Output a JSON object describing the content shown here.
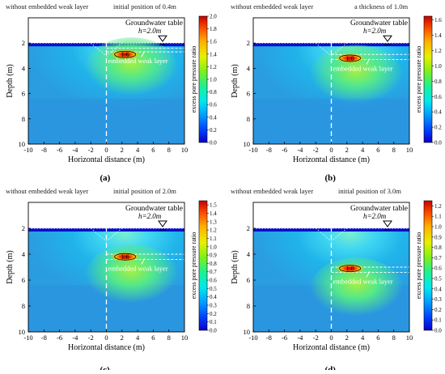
{
  "colorbar_label": "excess pore pressure ratio",
  "chart_data": [
    {
      "type": "heatmap",
      "panel_label": "(a)",
      "left_title": "without embedded weak layer",
      "right_title": "initial position of 0.4m",
      "xlabel": "Horizontal distance (m)",
      "ylabel": "Depth (m)",
      "xlim": [
        -10,
        10
      ],
      "ylim": [
        0,
        10
      ],
      "x_ticks": [
        -10,
        -8,
        -6,
        -4,
        -2,
        0,
        2,
        4,
        6,
        8,
        10
      ],
      "y_ticks": [
        2,
        4,
        6,
        8,
        10
      ],
      "y_inverted": true,
      "groundwater_label": "Groundwater table",
      "h_label": "h=2.0m",
      "groundwater_depth": 2.0,
      "weak_layer_label": "embedded weak layer",
      "weak_layer_depth": [
        2.4,
        2.7
      ],
      "peak_label": "1.6",
      "peak_x": 2.4,
      "peak_depth": 2.9,
      "colorbar_ticks": [
        0.0,
        0.2,
        0.4,
        0.6,
        0.8,
        1.0,
        1.2,
        1.4,
        1.6,
        1.8,
        2.0
      ],
      "colorbar_max": 2.0
    },
    {
      "type": "heatmap",
      "panel_label": "(b)",
      "left_title": "without embedded weak layer",
      "right_title": "a thickness of 1.0m",
      "xlabel": "Horizontal distance (m)",
      "ylabel": "Depth (m)",
      "xlim": [
        -10,
        10
      ],
      "ylim": [
        0,
        10
      ],
      "x_ticks": [
        -10,
        -8,
        -6,
        -4,
        -2,
        0,
        2,
        4,
        6,
        8,
        10
      ],
      "y_ticks": [
        2,
        4,
        6,
        8,
        10
      ],
      "y_inverted": true,
      "groundwater_label": "Groundwater table",
      "h_label": "h=2.0m",
      "groundwater_depth": 2.0,
      "weak_layer_label": "embedded weak layer",
      "weak_layer_depth": [
        2.9,
        3.3
      ],
      "peak_label": "1.0",
      "peak_x": 2.4,
      "peak_depth": 3.2,
      "colorbar_ticks": [
        0.0,
        0.2,
        0.4,
        0.6,
        0.8,
        1.0,
        1.2,
        1.4,
        1.6
      ],
      "colorbar_max": 1.65
    },
    {
      "type": "heatmap",
      "panel_label": "(c)",
      "left_title": "without embedded weak layer",
      "right_title": "initial position of 2.0m",
      "xlabel": "Horizontal distance (m)",
      "ylabel": "Depth (m)",
      "xlim": [
        -10,
        10
      ],
      "ylim": [
        0,
        10
      ],
      "x_ticks": [
        -10,
        -8,
        -6,
        -4,
        -2,
        0,
        2,
        4,
        6,
        8,
        10
      ],
      "y_ticks": [
        2,
        4,
        6,
        8,
        10
      ],
      "y_inverted": true,
      "groundwater_label": "Groundwater table",
      "h_label": "h=2.0m",
      "groundwater_depth": 2.0,
      "weak_layer_label": "embedded weak layer",
      "weak_layer_depth": [
        4.0,
        4.4
      ],
      "peak_label": "1.6",
      "peak_x": 2.4,
      "peak_depth": 4.2,
      "colorbar_ticks": [
        0.0,
        0.1,
        0.2,
        0.3,
        0.4,
        0.5,
        0.6,
        0.7,
        0.8,
        0.9,
        1.0,
        1.1,
        1.2,
        1.3,
        1.4,
        1.5
      ],
      "colorbar_max": 1.55
    },
    {
      "type": "heatmap",
      "panel_label": "(d)",
      "left_title": "without embedded weak layer",
      "right_title": "initial position of 3.0m",
      "xlabel": "Horizontal distance (m)",
      "ylabel": "Depth (m)",
      "xlim": [
        -10,
        10
      ],
      "ylim": [
        0,
        10
      ],
      "x_ticks": [
        -10,
        -8,
        -6,
        -4,
        -2,
        0,
        2,
        4,
        6,
        8,
        10
      ],
      "y_ticks": [
        2,
        4,
        6,
        8,
        10
      ],
      "y_inverted": true,
      "groundwater_label": "Groundwater table",
      "h_label": "h=2.0m",
      "groundwater_depth": 2.0,
      "weak_layer_label": "embedded weak layer",
      "weak_layer_depth": [
        5.0,
        5.4
      ],
      "peak_label": "1.0",
      "peak_x": 2.4,
      "peak_depth": 5.1,
      "colorbar_ticks": [
        0.0,
        0.1,
        0.2,
        0.3,
        0.4,
        0.5,
        0.6,
        0.7,
        0.8,
        0.9,
        1.0,
        1.1,
        1.2
      ],
      "colorbar_max": 1.25
    }
  ]
}
